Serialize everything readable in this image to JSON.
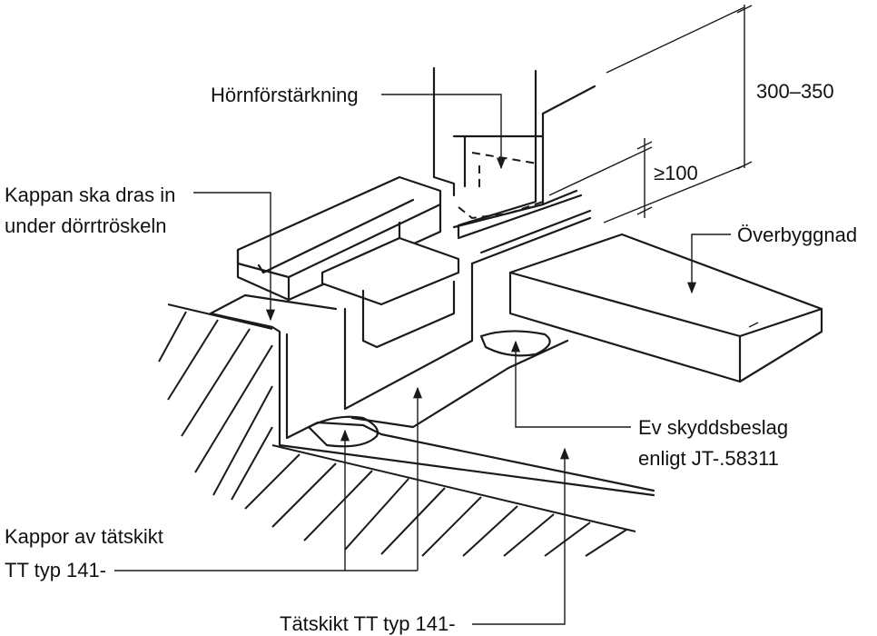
{
  "labels": {
    "hornforstarkning": "Hörnförstärkning",
    "kappan_line1": "Kappan ska dras in",
    "kappan_line2": "under dörrtröskeln",
    "dim_300_350": "300–350",
    "dim_100": "≥100",
    "overbyggnad": "Överbyggnad",
    "skyddsbeslag_line1": "Ev skyddsbeslag",
    "skyddsbeslag_line2": "enligt JT-.58311",
    "kappor_line1": "Kappor av tätskikt",
    "kappor_line2": "TT typ 141-",
    "tatskikt": "Tätskikt TT typ 141-"
  }
}
